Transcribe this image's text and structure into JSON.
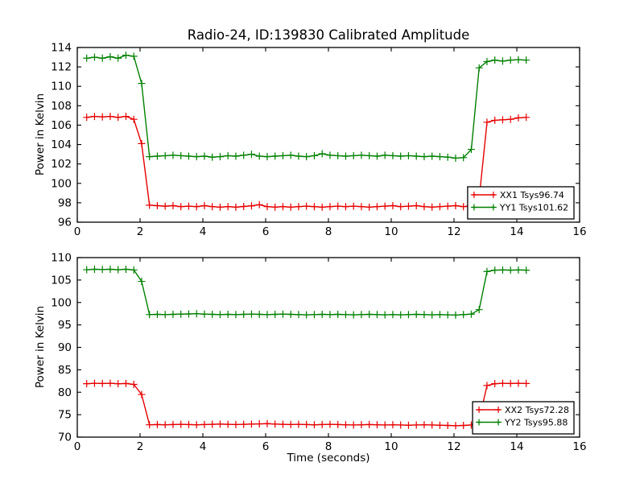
{
  "figure": {
    "title": "Radio-24, ID:139830 Calibrated Amplitude",
    "background": "#ffffff",
    "axis_color": "#000000"
  },
  "chart_data": [
    {
      "type": "line",
      "title": "Radio-24, ID:139830 Calibrated Amplitude",
      "xlabel": "",
      "ylabel": "Power in Kelvin",
      "xlim": [
        0,
        16
      ],
      "ylim": [
        96,
        114
      ],
      "xticks": [
        0,
        2,
        4,
        6,
        8,
        10,
        12,
        14,
        16
      ],
      "yticks": [
        96,
        98,
        100,
        102,
        104,
        106,
        108,
        110,
        112,
        114
      ],
      "grid": false,
      "legend_position": "lower-right",
      "marker": "plus",
      "x": [
        0.3,
        0.55,
        0.8,
        1.05,
        1.3,
        1.55,
        1.8,
        2.05,
        2.3,
        2.55,
        2.8,
        3.05,
        3.3,
        3.55,
        3.8,
        4.05,
        4.3,
        4.55,
        4.8,
        5.05,
        5.3,
        5.55,
        5.8,
        6.05,
        6.3,
        6.55,
        6.8,
        7.05,
        7.3,
        7.55,
        7.8,
        8.05,
        8.3,
        8.55,
        8.8,
        9.05,
        9.3,
        9.55,
        9.8,
        10.05,
        10.3,
        10.55,
        10.8,
        11.05,
        11.3,
        11.55,
        11.8,
        12.05,
        12.3,
        12.55,
        12.8,
        13.05,
        13.3,
        13.55,
        13.8,
        14.05,
        14.3
      ],
      "series": [
        {
          "name": "XX1 Tsys96.74",
          "color": "#e60000",
          "values": [
            106.8,
            106.9,
            106.85,
            106.9,
            106.8,
            106.9,
            106.6,
            104.1,
            97.75,
            97.7,
            97.65,
            97.7,
            97.6,
            97.65,
            97.6,
            97.7,
            97.6,
            97.55,
            97.6,
            97.55,
            97.62,
            97.68,
            97.8,
            97.6,
            97.55,
            97.6,
            97.55,
            97.6,
            97.65,
            97.6,
            97.55,
            97.6,
            97.65,
            97.6,
            97.65,
            97.6,
            97.55,
            97.6,
            97.65,
            97.7,
            97.6,
            97.65,
            97.7,
            97.6,
            97.55,
            97.6,
            97.65,
            97.7,
            97.6,
            97.7,
            98.4,
            106.3,
            106.5,
            106.55,
            106.6,
            106.75,
            106.8
          ]
        },
        {
          "name": "YY1 Tsys101.62",
          "color": "#008000",
          "values": [
            112.9,
            113.0,
            112.9,
            113.05,
            112.9,
            113.2,
            113.1,
            110.3,
            102.75,
            102.8,
            102.85,
            102.9,
            102.85,
            102.8,
            102.75,
            102.8,
            102.7,
            102.75,
            102.85,
            102.8,
            102.9,
            103.0,
            102.8,
            102.75,
            102.8,
            102.85,
            102.9,
            102.8,
            102.75,
            102.85,
            103.05,
            102.9,
            102.85,
            102.8,
            102.85,
            102.9,
            102.85,
            102.8,
            102.9,
            102.85,
            102.8,
            102.85,
            102.8,
            102.75,
            102.8,
            102.75,
            102.7,
            102.6,
            102.65,
            103.5,
            111.9,
            112.55,
            112.7,
            112.6,
            112.7,
            112.75,
            112.7
          ]
        }
      ]
    },
    {
      "type": "line",
      "title": "",
      "xlabel": "Time (seconds)",
      "ylabel": "Power in Kelvin",
      "xlim": [
        0,
        16
      ],
      "ylim": [
        70,
        110
      ],
      "xticks": [
        0,
        2,
        4,
        6,
        8,
        10,
        12,
        14,
        16
      ],
      "yticks": [
        70,
        75,
        80,
        85,
        90,
        95,
        100,
        105,
        110
      ],
      "grid": false,
      "legend_position": "lower-right",
      "marker": "plus",
      "x": [
        0.3,
        0.55,
        0.8,
        1.05,
        1.3,
        1.55,
        1.8,
        2.05,
        2.3,
        2.55,
        2.8,
        3.05,
        3.3,
        3.55,
        3.8,
        4.05,
        4.3,
        4.55,
        4.8,
        5.05,
        5.3,
        5.55,
        5.8,
        6.05,
        6.3,
        6.55,
        6.8,
        7.05,
        7.3,
        7.55,
        7.8,
        8.05,
        8.3,
        8.55,
        8.8,
        9.05,
        9.3,
        9.55,
        9.8,
        10.05,
        10.3,
        10.55,
        10.8,
        11.05,
        11.3,
        11.55,
        11.8,
        12.05,
        12.3,
        12.55,
        12.8,
        13.05,
        13.3,
        13.55,
        13.8,
        14.05,
        14.3
      ],
      "series": [
        {
          "name": "XX2 Tsys72.28",
          "color": "#e60000",
          "values": [
            81.9,
            82.0,
            81.95,
            82.0,
            81.9,
            81.95,
            81.75,
            79.5,
            72.75,
            72.8,
            72.75,
            72.8,
            72.85,
            72.8,
            72.75,
            72.8,
            72.85,
            72.9,
            72.85,
            72.8,
            72.85,
            72.9,
            72.95,
            73.0,
            72.9,
            72.85,
            72.8,
            72.85,
            72.8,
            72.75,
            72.8,
            72.85,
            72.8,
            72.75,
            72.7,
            72.75,
            72.8,
            72.75,
            72.7,
            72.75,
            72.7,
            72.65,
            72.7,
            72.75,
            72.7,
            72.65,
            72.6,
            72.55,
            72.6,
            72.7,
            73.9,
            81.5,
            81.9,
            82.0,
            81.95,
            82.0,
            81.95
          ]
        },
        {
          "name": "YY2 Tsys95.88",
          "color": "#008000",
          "values": [
            107.3,
            107.4,
            107.35,
            107.4,
            107.3,
            107.4,
            107.25,
            104.7,
            97.3,
            97.35,
            97.3,
            97.35,
            97.4,
            97.45,
            97.5,
            97.4,
            97.35,
            97.3,
            97.35,
            97.3,
            97.35,
            97.4,
            97.35,
            97.3,
            97.35,
            97.4,
            97.35,
            97.3,
            97.25,
            97.3,
            97.35,
            97.3,
            97.35,
            97.3,
            97.25,
            97.3,
            97.35,
            97.3,
            97.25,
            97.3,
            97.25,
            97.3,
            97.35,
            97.3,
            97.25,
            97.3,
            97.25,
            97.2,
            97.3,
            97.4,
            98.4,
            106.9,
            107.2,
            107.25,
            107.2,
            107.25,
            107.2
          ]
        }
      ]
    }
  ]
}
